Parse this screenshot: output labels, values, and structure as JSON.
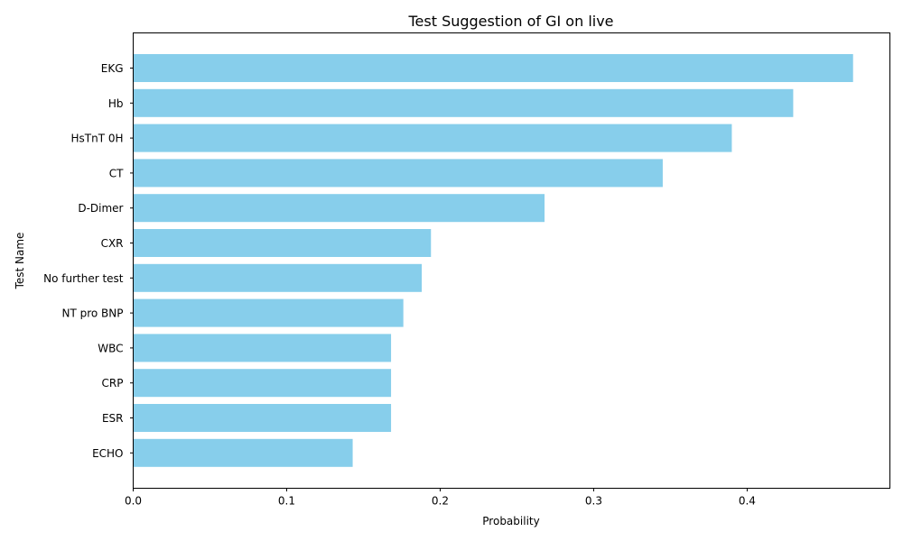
{
  "chart_data": {
    "type": "bar",
    "orientation": "horizontal",
    "title": "Test Suggestion of GI on live",
    "xlabel": "Probability",
    "ylabel": "Test Name",
    "categories": [
      "EKG",
      "Hb",
      "HsTnT 0H",
      "CT",
      "D-Dimer",
      "CXR",
      "No further test",
      "NT pro BNP",
      "WBC",
      "CRP",
      "ESR",
      "ECHO"
    ],
    "values": [
      0.469,
      0.43,
      0.39,
      0.345,
      0.268,
      0.194,
      0.188,
      0.176,
      0.168,
      0.168,
      0.168,
      0.143
    ],
    "xlim": [
      0,
      0.493
    ],
    "xticks": [
      "0.0",
      "0.1",
      "0.2",
      "0.3",
      "0.4"
    ],
    "bar_color": "#87CEEB",
    "grid": false,
    "legend": "none"
  }
}
